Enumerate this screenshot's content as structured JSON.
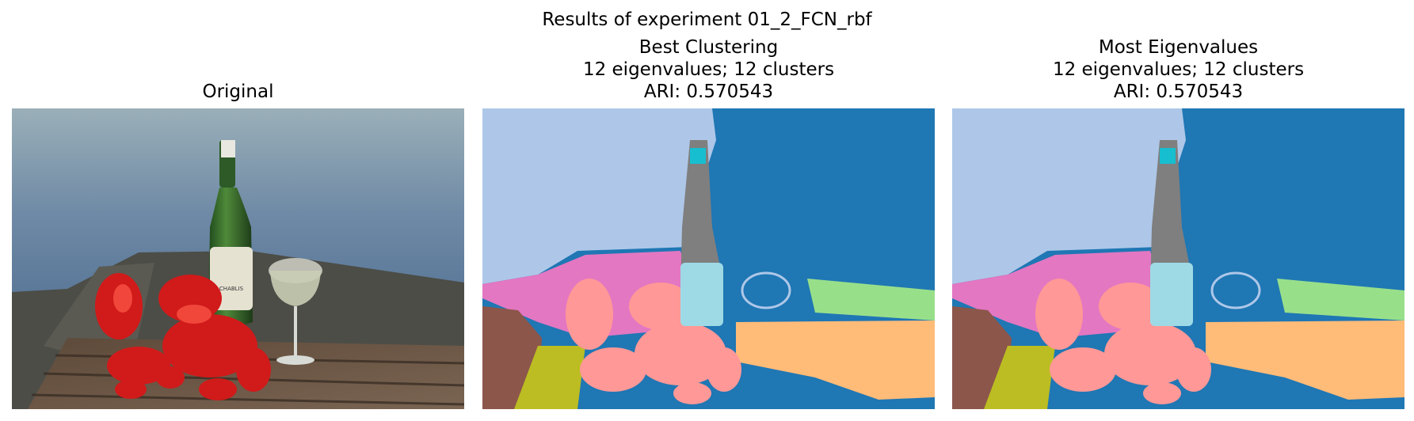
{
  "suptitle": "Results of experiment 01_2_FCN_rbf",
  "panels": [
    {
      "title": "Original",
      "image": "photo of two red lobsters, a wine bottle and a wine glass on a wooden pier table by the water"
    },
    {
      "title_lines": [
        "Best Clustering",
        "12 eigenvalues; 12 clusters",
        "ARI: 0.570543"
      ],
      "image": "segmentation map"
    },
    {
      "title_lines": [
        "Most Eigenvalues",
        "12 eigenvalues; 12 clusters",
        "ARI: 0.570543"
      ],
      "image": "segmentation map"
    }
  ],
  "segment_colors": {
    "sky": "#aec7e8",
    "water": "#1f77b4",
    "pink": "#e377c2",
    "brown": "#8c564b",
    "green": "#98df8a",
    "orange": "#ffbb78",
    "olive": "#bcbd22",
    "salmon": "#ff9896",
    "gray": "#7f7f7f",
    "lightblue": "#9edae5",
    "cyan": "#17becf"
  }
}
